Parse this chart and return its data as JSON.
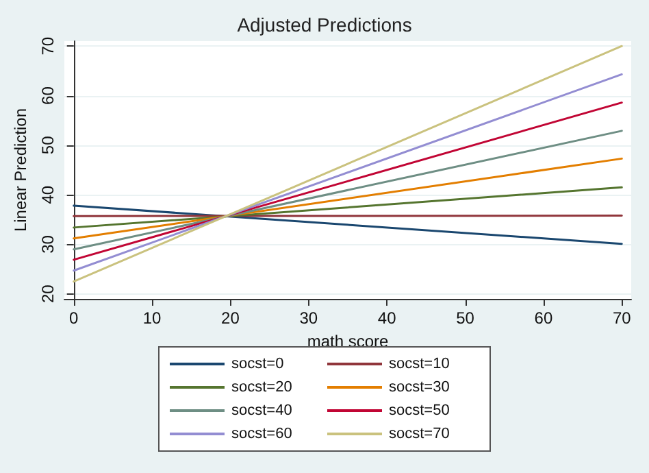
{
  "chart_data": {
    "type": "line",
    "title": "Adjusted Predictions",
    "xlabel": "math score",
    "ylabel": "Linear Prediction",
    "x": [
      0,
      70
    ],
    "series": [
      {
        "name": "socst=0",
        "color": "#1a476f",
        "values": [
          37.8,
          30.1
        ]
      },
      {
        "name": "socst=10",
        "color": "#90353b",
        "values": [
          35.7,
          35.8
        ]
      },
      {
        "name": "socst=20",
        "color": "#55752f",
        "values": [
          33.4,
          41.5
        ]
      },
      {
        "name": "socst=30",
        "color": "#e37e00",
        "values": [
          31.2,
          47.3
        ]
      },
      {
        "name": "socst=40",
        "color": "#6e8e84",
        "values": [
          29.0,
          52.9
        ]
      },
      {
        "name": "socst=50",
        "color": "#c10534",
        "values": [
          26.9,
          58.6
        ]
      },
      {
        "name": "socst=60",
        "color": "#938dd2",
        "values": [
          24.7,
          64.3
        ]
      },
      {
        "name": "socst=70",
        "color": "#cac27e",
        "values": [
          22.5,
          70.0
        ]
      }
    ],
    "xlim": [
      -1.2,
      71.2
    ],
    "xticks": [
      0,
      10,
      20,
      30,
      40,
      50,
      60,
      70
    ],
    "ylim": [
      19,
      71
    ],
    "yticks": [
      20,
      30,
      40,
      50,
      60,
      70
    ],
    "grid": "y",
    "legend": "bottom",
    "marker": "none",
    "line_style": "solid"
  }
}
